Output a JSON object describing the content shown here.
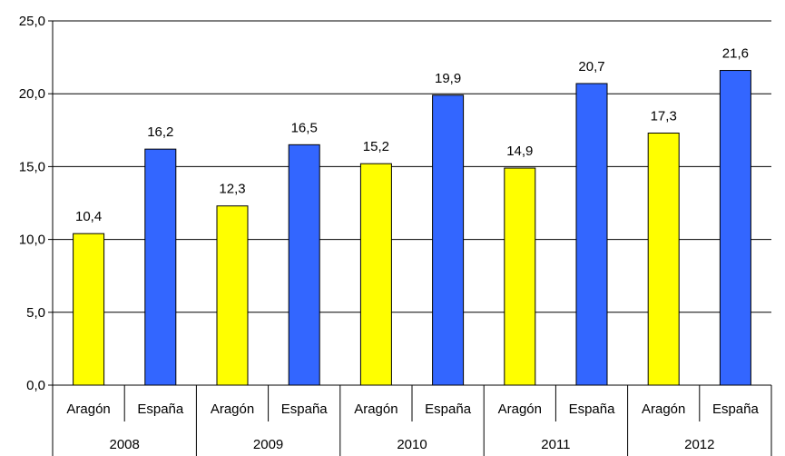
{
  "chart_data": {
    "type": "bar",
    "title": "",
    "xlabel": "",
    "ylabel": "",
    "ylim": [
      0,
      25
    ],
    "y_ticks": [
      "0,0",
      "5,0",
      "10,0",
      "15,0",
      "20,0",
      "25,0"
    ],
    "y_tick_values": [
      0,
      5,
      10,
      15,
      20,
      25
    ],
    "grid": true,
    "legend": "none",
    "groups": [
      "2008",
      "2009",
      "2010",
      "2011",
      "2012"
    ],
    "subcategories": [
      "Aragón",
      "España"
    ],
    "series": [
      {
        "name": "Aragón",
        "color": "#ffff00",
        "values": [
          10.4,
          12.3,
          15.2,
          14.9,
          17.3
        ],
        "labels": [
          "10,4",
          "12,3",
          "15,2",
          "14,9",
          "17,3"
        ]
      },
      {
        "name": "España",
        "color": "#3366ff",
        "values": [
          16.2,
          16.5,
          19.9,
          20.7,
          21.6
        ],
        "labels": [
          "16,2",
          "16,5",
          "19,9",
          "20,7",
          "21,6"
        ]
      }
    ]
  }
}
